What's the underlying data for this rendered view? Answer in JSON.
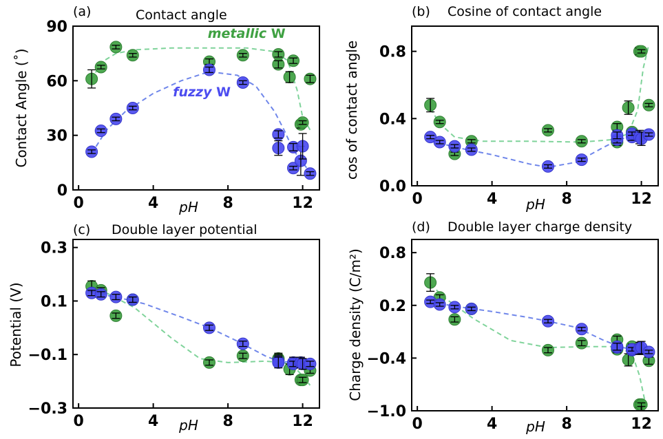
{
  "colors": {
    "metallic_fill": "#3fa142",
    "metallic_edge": "#2f7f33",
    "metallic_line": "#7fd39a",
    "fuzzy_fill": "#4c4cf0",
    "fuzzy_edge": "#3636c8",
    "fuzzy_line": "#6f86ea",
    "errorbar": "#000000"
  },
  "chart_data": [
    {
      "panel_id": "a",
      "type": "scatter",
      "panel_letter": "(a)",
      "title": "Contact angle",
      "xlabel": "pH",
      "ylabel": "Contact Angle (˚)",
      "xlim": [
        -0.3,
        12.9
      ],
      "ylim": [
        0,
        90
      ],
      "xticks": [
        0,
        4,
        8,
        12
      ],
      "yticks": [
        0,
        30,
        60,
        90
      ],
      "ytick_labels": [
        "0",
        "30",
        "60",
        "90"
      ],
      "annotations": [
        {
          "series": "metallic",
          "italic": "metallic",
          "text": " W",
          "x": 9.0,
          "y": 83.5
        },
        {
          "series": "fuzzy",
          "italic": "fuzzy",
          "text": " W",
          "x": 6.6,
          "y": 51.5
        }
      ],
      "series": [
        {
          "key": "metallic",
          "points": [
            [
              0.7,
              61,
              5
            ],
            [
              1.2,
              67.5,
              1
            ],
            [
              2.0,
              78.5,
              1
            ],
            [
              2.9,
              74,
              1
            ],
            [
              7.0,
              70.5,
              1.5
            ],
            [
              8.8,
              74,
              1
            ],
            [
              10.7,
              74.5,
              1.5
            ],
            [
              10.7,
              69,
              2
            ],
            [
              11.3,
              62,
              3
            ],
            [
              11.5,
              71,
              1.5
            ],
            [
              11.9,
              36,
              2
            ],
            [
              12.0,
              37,
              1
            ],
            [
              12.4,
              61,
              2
            ]
          ],
          "fit": [
            [
              0.7,
              60.5
            ],
            [
              1.2,
              70
            ],
            [
              2.0,
              75
            ],
            [
              3,
              77
            ],
            [
              5,
              78
            ],
            [
              7,
              78
            ],
            [
              9,
              78
            ],
            [
              10.5,
              76
            ],
            [
              11.2,
              71
            ],
            [
              11.7,
              55
            ],
            [
              12.0,
              40
            ],
            [
              12.4,
              33
            ]
          ]
        },
        {
          "key": "fuzzy",
          "points": [
            [
              0.7,
              21,
              1
            ],
            [
              1.2,
              32.5,
              1
            ],
            [
              2.0,
              39,
              1
            ],
            [
              2.9,
              45,
              1
            ],
            [
              7.0,
              66,
              1.5
            ],
            [
              8.8,
              59,
              1
            ],
            [
              10.7,
              30.5,
              2
            ],
            [
              10.7,
              23,
              4
            ],
            [
              11.5,
              23.5,
              2
            ],
            [
              11.5,
              12,
              1
            ],
            [
              11.9,
              16,
              8
            ],
            [
              12.0,
              24,
              7
            ],
            [
              12.4,
              9,
              1
            ]
          ],
          "fit": [
            [
              0.7,
              20
            ],
            [
              1.5,
              33
            ],
            [
              2.5,
              43
            ],
            [
              4,
              53
            ],
            [
              5.5,
              60
            ],
            [
              7,
              65
            ],
            [
              8.5,
              63
            ],
            [
              9.5,
              57
            ],
            [
              10.5,
              43
            ],
            [
              11.0,
              33
            ],
            [
              11.5,
              22
            ],
            [
              12.0,
              15
            ],
            [
              12.3,
              11
            ]
          ]
        }
      ]
    },
    {
      "panel_id": "b",
      "type": "scatter",
      "panel_letter": "(b)",
      "title": "Cosine of contact angle",
      "xlabel": "pH",
      "ylabel": "cos of contact angle",
      "xlim": [
        -0.3,
        12.9
      ],
      "ylim": [
        0,
        0.95
      ],
      "xticks": [
        0,
        4,
        8,
        12
      ],
      "yticks": [
        0,
        0.4,
        0.8
      ],
      "ytick_labels": [
        "0.0",
        "0.4",
        "0.8"
      ],
      "annotations": [],
      "series": [
        {
          "key": "metallic",
          "points": [
            [
              0.7,
              0.48,
              0.04
            ],
            [
              1.2,
              0.38,
              0.01
            ],
            [
              2.0,
              0.19,
              0.01
            ],
            [
              2.9,
              0.265,
              0.01
            ],
            [
              7.0,
              0.33,
              0.01
            ],
            [
              8.8,
              0.265,
              0.01
            ],
            [
              10.7,
              0.35,
              0.02
            ],
            [
              10.7,
              0.26,
              0.02
            ],
            [
              11.3,
              0.465,
              0.04
            ],
            [
              11.5,
              0.32,
              0.01
            ],
            [
              11.9,
              0.8,
              0.02
            ],
            [
              12.0,
              0.8,
              0.01
            ],
            [
              12.4,
              0.48,
              0.01
            ]
          ],
          "fit": [
            [
              0.7,
              0.46
            ],
            [
              1.2,
              0.37
            ],
            [
              2,
              0.29
            ],
            [
              3.5,
              0.265
            ],
            [
              6,
              0.265
            ],
            [
              8.8,
              0.26
            ],
            [
              10.5,
              0.275
            ],
            [
              11.3,
              0.31
            ],
            [
              11.8,
              0.45
            ],
            [
              12.1,
              0.7
            ],
            [
              12.4,
              0.84
            ]
          ]
        },
        {
          "key": "fuzzy",
          "points": [
            [
              0.7,
              0.29,
              0.01
            ],
            [
              1.2,
              0.26,
              0.01
            ],
            [
              2.0,
              0.235,
              0.01
            ],
            [
              2.9,
              0.215,
              0.01
            ],
            [
              7.0,
              0.115,
              0.01
            ],
            [
              8.8,
              0.155,
              0.01
            ],
            [
              10.7,
              0.275,
              0.02
            ],
            [
              10.7,
              0.3,
              0.02
            ],
            [
              11.5,
              0.29,
              0.02
            ],
            [
              11.5,
              0.31,
              0.01
            ],
            [
              11.9,
              0.29,
              0.04
            ],
            [
              12.0,
              0.28,
              0.04
            ],
            [
              12.4,
              0.305,
              0.01
            ]
          ],
          "fit": [
            [
              0.7,
              0.27
            ],
            [
              2,
              0.23
            ],
            [
              4,
              0.185
            ],
            [
              6,
              0.13
            ],
            [
              7,
              0.11
            ],
            [
              8.5,
              0.14
            ],
            [
              10,
              0.23
            ],
            [
              10.7,
              0.27
            ],
            [
              11.5,
              0.3
            ],
            [
              12.4,
              0.34
            ]
          ]
        }
      ]
    },
    {
      "panel_id": "c",
      "type": "scatter",
      "panel_letter": "(c)",
      "title": "Double layer potential",
      "xlabel": "pH",
      "ylabel": "Potential (V)",
      "xlim": [
        -0.3,
        12.9
      ],
      "ylim": [
        -0.3,
        0.33
      ],
      "xticks": [
        0,
        4,
        8,
        12
      ],
      "yticks": [
        -0.3,
        -0.1,
        0.1,
        0.3
      ],
      "ytick_labels": [
        "−0.3",
        "−0.1",
        "0.1",
        "0.3"
      ],
      "annotations": [],
      "series": [
        {
          "key": "metallic",
          "points": [
            [
              0.7,
              0.155,
              0.02
            ],
            [
              1.2,
              0.14,
              0.01
            ],
            [
              2.0,
              0.045,
              0.01
            ],
            [
              2.9,
              0.105,
              0.01
            ],
            [
              7.0,
              -0.13,
              0.01
            ],
            [
              8.8,
              -0.105,
              0.01
            ],
            [
              10.7,
              -0.115,
              0.02
            ],
            [
              10.7,
              -0.12,
              0.02
            ],
            [
              11.3,
              -0.155,
              0.02
            ],
            [
              11.5,
              -0.135,
              0.01
            ],
            [
              11.9,
              -0.195,
              0.01
            ],
            [
              12.0,
              -0.195,
              0.01
            ],
            [
              12.4,
              -0.16,
              0.01
            ]
          ],
          "fit": [
            [
              0.7,
              0.155
            ],
            [
              1.5,
              0.13
            ],
            [
              3,
              0.075
            ],
            [
              5,
              -0.04
            ],
            [
              6.5,
              -0.115
            ],
            [
              8,
              -0.13
            ],
            [
              10,
              -0.125
            ],
            [
              11,
              -0.13
            ],
            [
              11.6,
              -0.15
            ],
            [
              12.0,
              -0.18
            ],
            [
              12.4,
              -0.215
            ]
          ]
        },
        {
          "key": "fuzzy",
          "points": [
            [
              0.7,
              0.13,
              0.01
            ],
            [
              1.2,
              0.125,
              0.01
            ],
            [
              2.0,
              0.115,
              0.01
            ],
            [
              2.9,
              0.105,
              0.01
            ],
            [
              7.0,
              0.0,
              0.01
            ],
            [
              8.8,
              -0.06,
              0.01
            ],
            [
              10.7,
              -0.125,
              0.02
            ],
            [
              10.7,
              -0.13,
              0.02
            ],
            [
              11.5,
              -0.13,
              0.02
            ],
            [
              11.5,
              -0.135,
              0.01
            ],
            [
              11.9,
              -0.13,
              0.02
            ],
            [
              12.0,
              -0.135,
              0.02
            ],
            [
              12.4,
              -0.135,
              0.01
            ]
          ],
          "fit": [
            [
              0.7,
              0.13
            ],
            [
              2,
              0.115
            ],
            [
              3.5,
              0.09
            ],
            [
              5.5,
              0.04
            ],
            [
              7,
              0.0
            ],
            [
              8.5,
              -0.05
            ],
            [
              10,
              -0.105
            ],
            [
              10.7,
              -0.125
            ],
            [
              11.5,
              -0.13
            ],
            [
              12.4,
              -0.14
            ]
          ]
        }
      ]
    },
    {
      "panel_id": "d",
      "type": "scatter",
      "panel_letter": "(d)",
      "title": "Double layer charge density",
      "xlabel": "pH",
      "ylabel": "Charge density (C/m²)",
      "xlim": [
        -0.3,
        12.9
      ],
      "ylim": [
        -1.0,
        0.95
      ],
      "xticks": [
        0,
        4,
        8,
        12
      ],
      "yticks": [
        -1.0,
        -0.4,
        0.2,
        0.8
      ],
      "ytick_labels": [
        "−1.0",
        "−0.4",
        "0.2",
        "0.8"
      ],
      "annotations": [],
      "series": [
        {
          "key": "metallic",
          "points": [
            [
              0.7,
              0.46,
              0.1
            ],
            [
              1.2,
              0.29,
              0.03
            ],
            [
              2.0,
              0.04,
              0.03
            ],
            [
              2.9,
              0.16,
              0.02
            ],
            [
              7.0,
              -0.31,
              0.03
            ],
            [
              8.8,
              -0.23,
              0.03
            ],
            [
              10.7,
              -0.19,
              0.04
            ],
            [
              10.7,
              -0.3,
              0.04
            ],
            [
              11.3,
              -0.42,
              0.07
            ],
            [
              11.5,
              -0.27,
              0.03
            ],
            [
              11.9,
              -0.93,
              0.03
            ],
            [
              12.0,
              -0.93,
              0.02
            ],
            [
              12.4,
              -0.43,
              0.04
            ]
          ],
          "fit": [
            [
              0.7,
              0.44
            ],
            [
              1.5,
              0.28
            ],
            [
              3,
              0.05
            ],
            [
              5,
              -0.2
            ],
            [
              7,
              -0.28
            ],
            [
              9,
              -0.27
            ],
            [
              10.7,
              -0.27
            ],
            [
              11.5,
              -0.35
            ],
            [
              11.9,
              -0.6
            ],
            [
              12.2,
              -0.9
            ],
            [
              12.4,
              -1.0
            ]
          ]
        },
        {
          "key": "fuzzy",
          "points": [
            [
              0.7,
              0.24,
              0.02
            ],
            [
              1.2,
              0.21,
              0.02
            ],
            [
              2.0,
              0.18,
              0.02
            ],
            [
              2.9,
              0.16,
              0.02
            ],
            [
              7.0,
              0.02,
              0.02
            ],
            [
              8.8,
              -0.07,
              0.02
            ],
            [
              10.7,
              -0.28,
              0.04
            ],
            [
              10.7,
              -0.27,
              0.04
            ],
            [
              11.5,
              -0.31,
              0.04
            ],
            [
              11.5,
              -0.3,
              0.02
            ],
            [
              11.9,
              -0.29,
              0.07
            ],
            [
              12.0,
              -0.28,
              0.07
            ],
            [
              12.4,
              -0.33,
              0.02
            ]
          ],
          "fit": [
            [
              0.7,
              0.24
            ],
            [
              2,
              0.19
            ],
            [
              4,
              0.13
            ],
            [
              6,
              0.06
            ],
            [
              7,
              0.02
            ],
            [
              8.5,
              -0.05
            ],
            [
              10,
              -0.2
            ],
            [
              11,
              -0.28
            ],
            [
              12.4,
              -0.33
            ]
          ]
        }
      ]
    }
  ]
}
